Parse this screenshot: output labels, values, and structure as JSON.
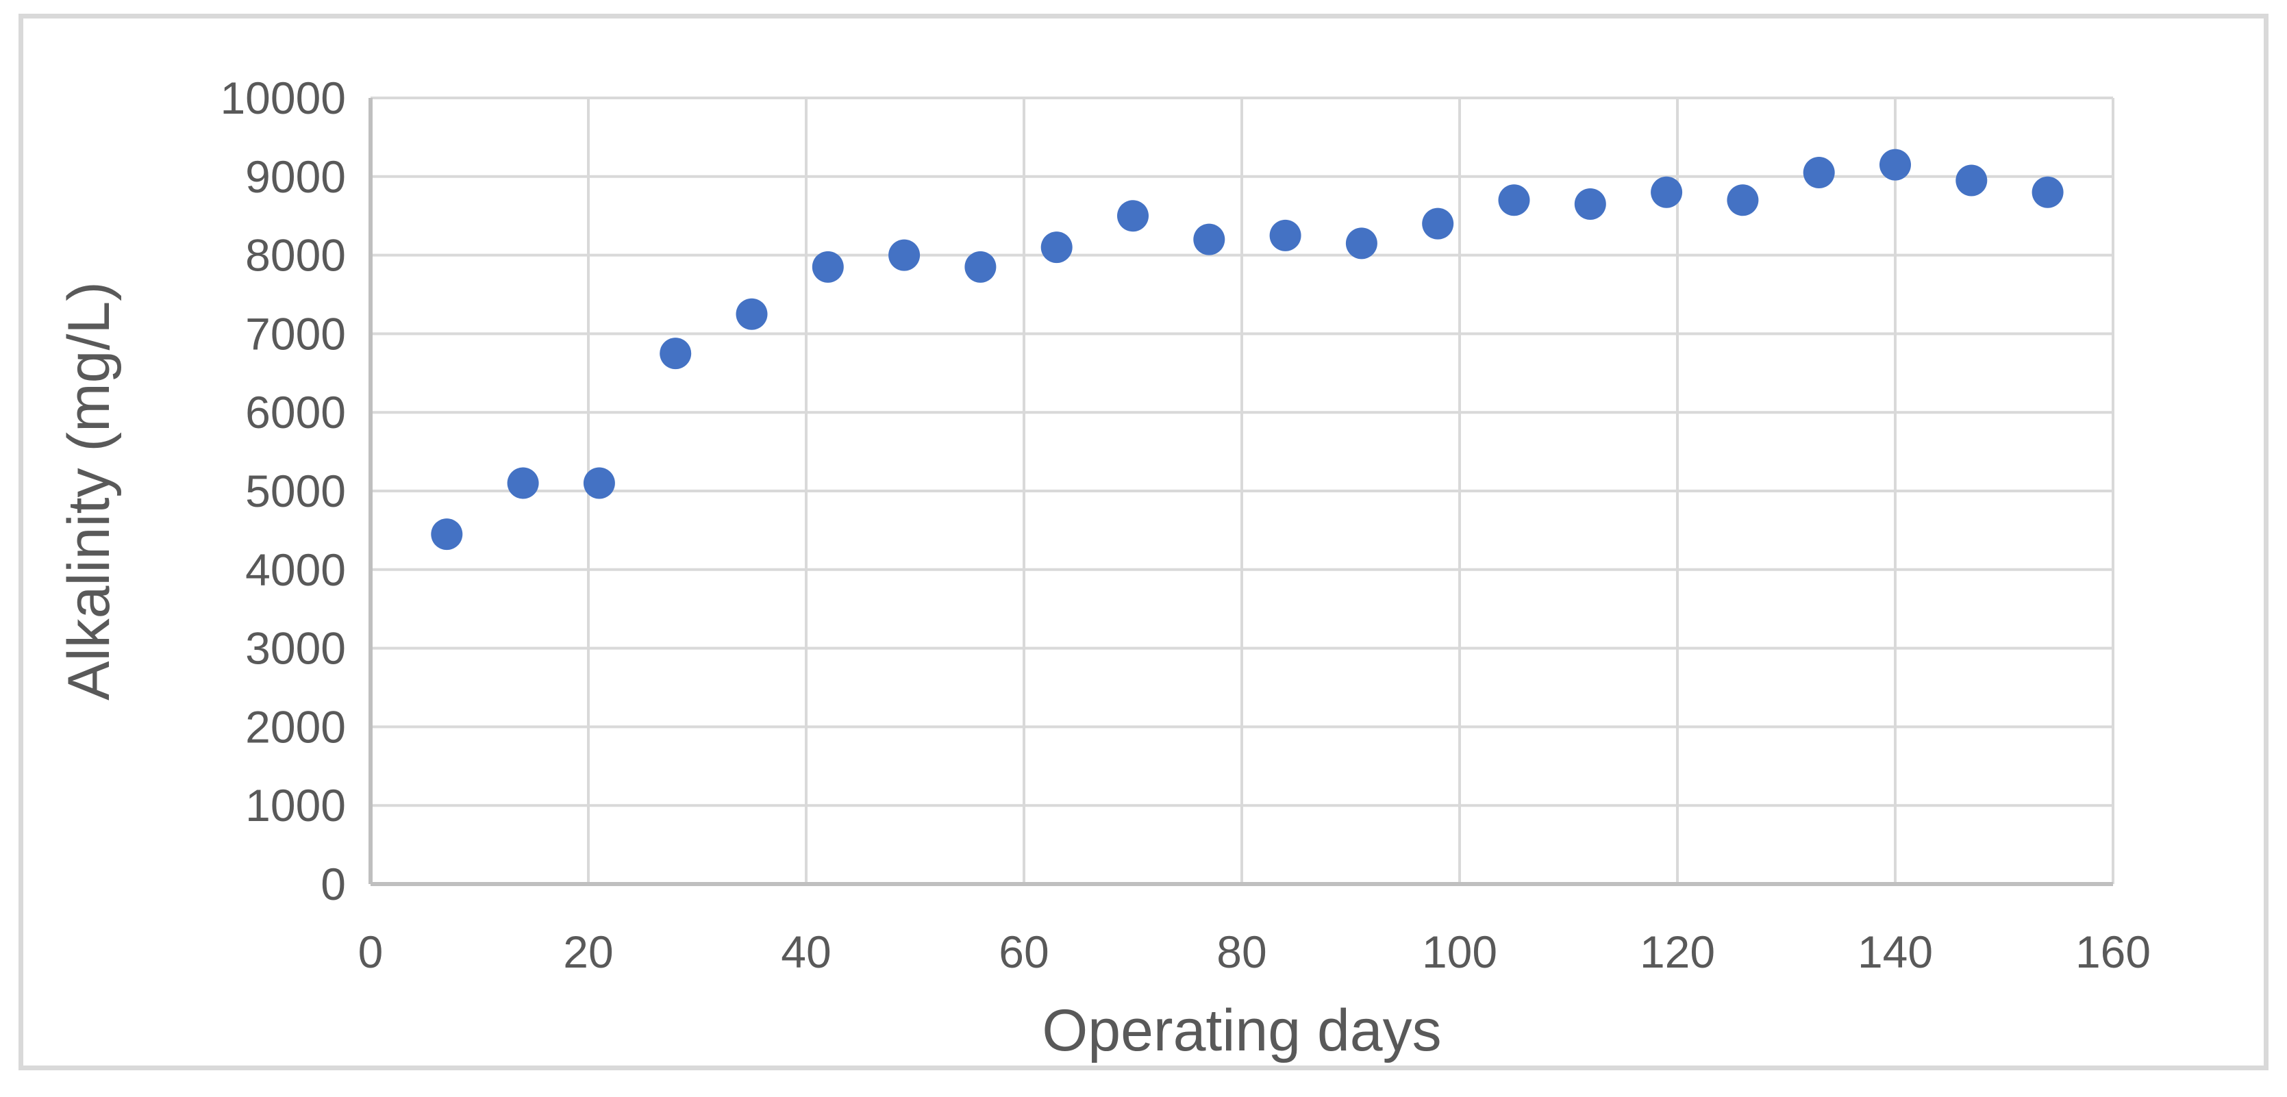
{
  "chart_data": {
    "type": "scatter",
    "title": "",
    "xlabel": "Operating days",
    "ylabel": "Alkalinity (mg/L)",
    "series": [
      {
        "name": "Alkalinity",
        "x": [
          7,
          14,
          21,
          28,
          35,
          42,
          49,
          56,
          63,
          70,
          77,
          84,
          91,
          98,
          105,
          112,
          119,
          126,
          133,
          140,
          147,
          154
        ],
        "y": [
          4450,
          5100,
          5100,
          6750,
          7250,
          7850,
          8000,
          7850,
          8100,
          8500,
          8200,
          8250,
          8150,
          8400,
          8700,
          8650,
          8800,
          8700,
          9050,
          9150,
          8950,
          8800
        ]
      }
    ],
    "xlim": [
      0,
      160
    ],
    "ylim": [
      0,
      10000
    ],
    "x_ticks": [
      "0",
      "20",
      "40",
      "60",
      "80",
      "100",
      "120",
      "140",
      "160"
    ],
    "y_ticks": [
      "0",
      "1000",
      "2000",
      "3000",
      "4000",
      "5000",
      "6000",
      "7000",
      "8000",
      "9000",
      "10000"
    ],
    "grid": true,
    "legend": false,
    "colors": {
      "marker": "#4472C4",
      "gridline": "#D9D9D9",
      "axis_line": "#BFBFBF",
      "text": "#595959",
      "frame_border": "#D9D9D9",
      "background": "#FFFFFF"
    }
  }
}
